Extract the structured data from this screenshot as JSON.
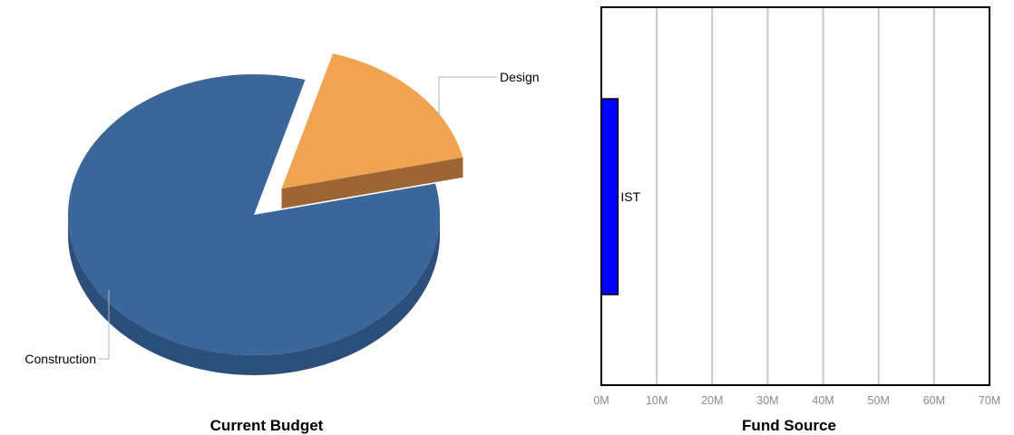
{
  "chart_data": [
    {
      "type": "pie",
      "title": "Current Budget",
      "slices": [
        {
          "label": "Construction",
          "value": 83,
          "color": "#3a6699",
          "side_color": "#2c4e7a"
        },
        {
          "label": "Design",
          "value": 17,
          "color": "#f0a350",
          "side_color": "#9c6534",
          "exploded": true
        }
      ],
      "style": "3d"
    },
    {
      "type": "bar",
      "orientation": "horizontal",
      "title": "Fund Source",
      "categories": [
        "IST"
      ],
      "values": [
        3
      ],
      "value_unit": "M",
      "xlim": [
        0,
        70
      ],
      "x_ticks": [
        "0M",
        "10M",
        "20M",
        "30M",
        "40M",
        "50M",
        "60M",
        "70M"
      ],
      "bar_color": "#0000ff",
      "grid": true
    }
  ]
}
